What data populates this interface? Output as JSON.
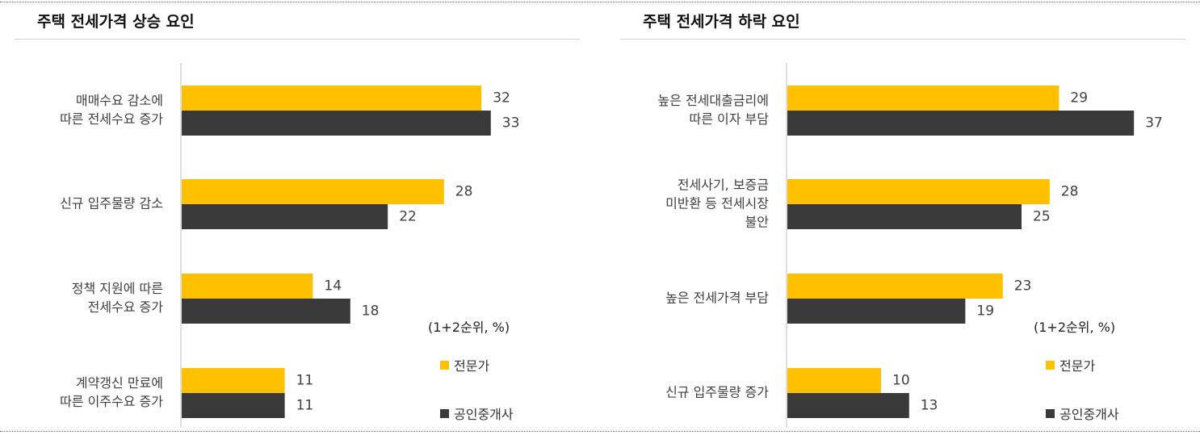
{
  "chart_data": [
    {
      "type": "bar",
      "orientation": "horizontal",
      "title": "주택 전세가격 상승 요인",
      "categories": [
        [
          "매매수요 감소에",
          "따른 전세수요 증가"
        ],
        [
          "신규 입주물량 감소"
        ],
        [
          "정책 지원에 따른",
          "전세수요 증가"
        ],
        [
          "계약갱신 만료에",
          "따른 이주수요 증가"
        ]
      ],
      "series": [
        {
          "name": "전문가",
          "values": [
            32,
            28,
            14,
            11
          ]
        },
        {
          "name": "공인중개사",
          "values": [
            33,
            22,
            18,
            11
          ]
        }
      ],
      "xlim": [
        0,
        40
      ],
      "unit_note": "(1+2순위, %)",
      "legend_position": "bottom-right",
      "grid": false
    },
    {
      "type": "bar",
      "orientation": "horizontal",
      "title": "주택 전세가격 하락 요인",
      "categories": [
        [
          "높은 전세대출금리에",
          "따른 이자 부담"
        ],
        [
          "전세사기, 보증금",
          "미반환 등 전세시장",
          "불안"
        ],
        [
          "높은 전세가격 부담"
        ],
        [
          "신규 입주물량 증가"
        ]
      ],
      "series": [
        {
          "name": "전문가",
          "values": [
            29,
            28,
            23,
            10
          ]
        },
        {
          "name": "공인중개사",
          "values": [
            37,
            25,
            19,
            13
          ]
        }
      ],
      "xlim": [
        0,
        40
      ],
      "unit_note": "(1+2순위, %)",
      "legend_position": "bottom-right",
      "grid": false
    }
  ],
  "colors": {
    "expert": "#FFC000",
    "agent": "#3A3A3A",
    "axis": "#BFBFBF",
    "label": "#404040"
  }
}
